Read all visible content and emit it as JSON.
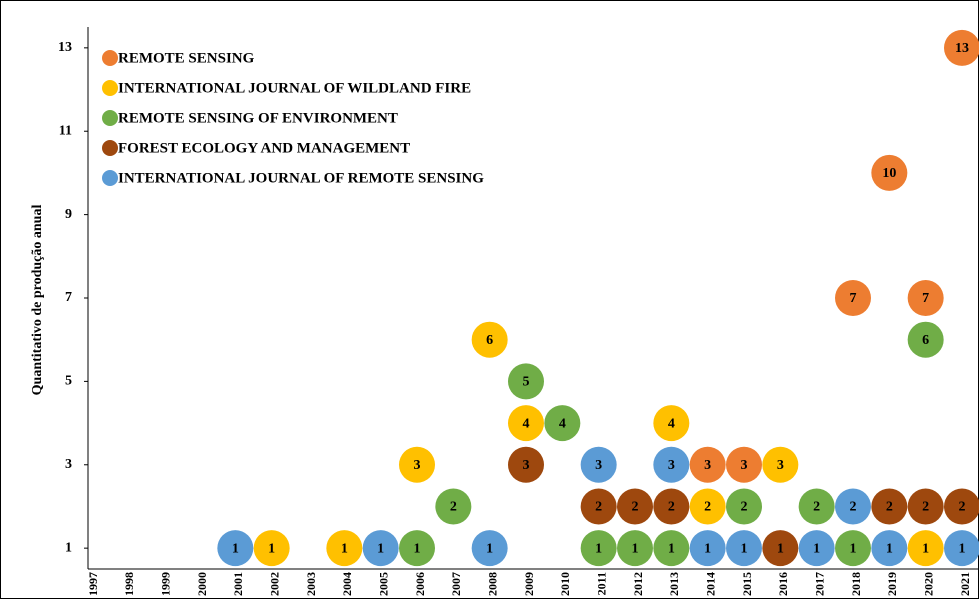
{
  "chart_data": {
    "type": "scatter",
    "y_label": "Quantitativo de produção anual",
    "categories": [
      "1997",
      "1998",
      "1999",
      "2000",
      "2001",
      "2002",
      "2003",
      "2004",
      "2005",
      "2006",
      "2007",
      "2008",
      "2009",
      "2010",
      "2011",
      "2012",
      "2013",
      "2014",
      "2015",
      "2016",
      "2017",
      "2018",
      "2019",
      "2020",
      "2021"
    ],
    "ylim": [
      0.5,
      13.5
    ],
    "yticks": [
      1,
      3,
      5,
      7,
      9,
      11,
      13
    ],
    "grid": false,
    "legend": "top-left",
    "series": [
      {
        "name": "REMOTE SENSING",
        "color": "#ed7d31",
        "values": [
          null,
          null,
          null,
          null,
          null,
          null,
          null,
          null,
          null,
          null,
          null,
          null,
          null,
          null,
          null,
          null,
          null,
          3,
          3,
          null,
          null,
          7,
          10,
          7,
          13
        ]
      },
      {
        "name": "INTERNATIONAL JOURNAL OF WILDLAND FIRE",
        "color": "#ffc000",
        "values": [
          null,
          null,
          null,
          null,
          null,
          1,
          null,
          1,
          null,
          3,
          null,
          6,
          4,
          null,
          null,
          null,
          4,
          2,
          null,
          3,
          null,
          null,
          null,
          1,
          null
        ]
      },
      {
        "name": "REMOTE SENSING OF ENVIRONMENT",
        "color": "#70ad47",
        "values": [
          null,
          null,
          null,
          null,
          null,
          null,
          null,
          null,
          null,
          1,
          2,
          null,
          5,
          4,
          1,
          1,
          1,
          null,
          2,
          null,
          2,
          1,
          null,
          6,
          null
        ]
      },
      {
        "name": "FOREST ECOLOGY AND MANAGEMENT",
        "color": "#9e480e",
        "values": [
          null,
          null,
          null,
          null,
          null,
          null,
          null,
          null,
          null,
          null,
          null,
          null,
          3,
          null,
          2,
          2,
          2,
          null,
          null,
          1,
          null,
          null,
          2,
          2,
          2
        ]
      },
      {
        "name": "INTERNATIONAL JOURNAL OF REMOTE SENSING",
        "color": "#5b9bd5",
        "values": [
          null,
          null,
          null,
          null,
          1,
          null,
          null,
          null,
          1,
          null,
          null,
          1,
          null,
          null,
          3,
          null,
          3,
          1,
          1,
          null,
          1,
          2,
          1,
          null,
          1
        ]
      }
    ]
  }
}
